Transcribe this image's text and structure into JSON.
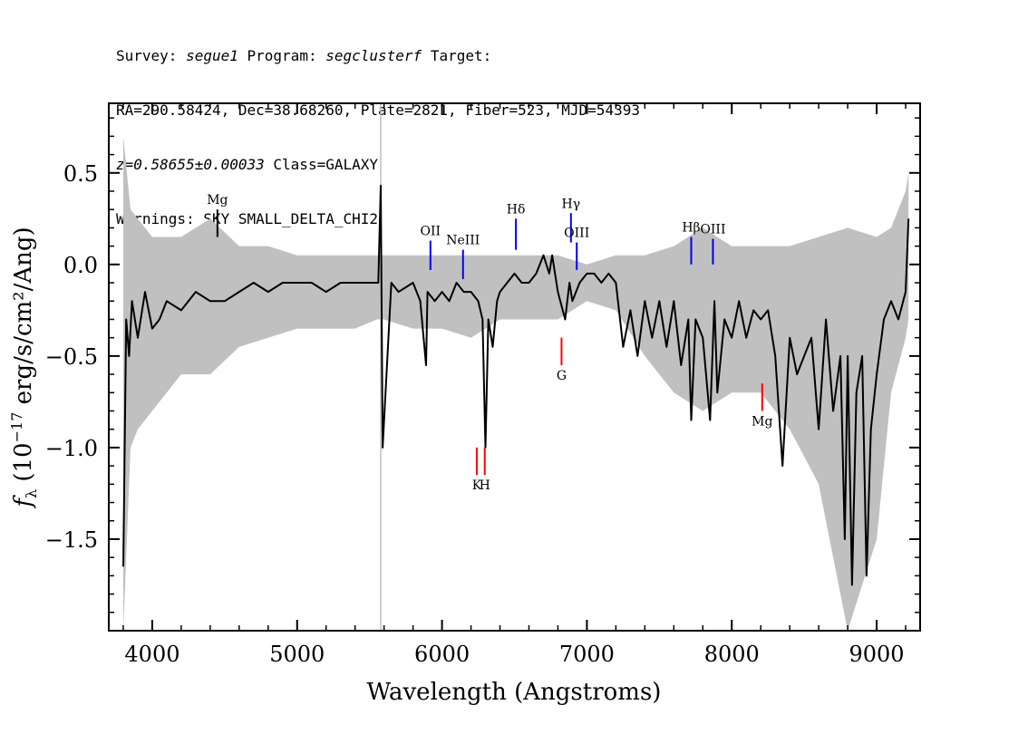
{
  "header": {
    "survey_label": "Survey:",
    "survey": "segue1",
    "program_label": "Program:",
    "program": "segclusterf",
    "target_label": "Target:",
    "coords": "RA=290.58424, Dec=38.68260, Plate=2821, Fiber=523, MJD=54393",
    "redshift": "z=0.58655±0.00033",
    "class": "Class=GALAXY",
    "warnings": "Warnings: SKY SMALL_DELTA_CHI2"
  },
  "chart_data": {
    "type": "line",
    "xlabel": "Wavelength (Angstroms)",
    "ylabel_main": "f",
    "ylabel_sub": "λ",
    "ylabel_rest": " (10",
    "ylabel_exp": "−17",
    "ylabel_tail": " erg/s/cm²/Ang)",
    "xlim": [
      3700,
      9300
    ],
    "ylim": [
      -2.0,
      0.88
    ],
    "x_ticks": [
      4000,
      5000,
      6000,
      7000,
      8000,
      9000
    ],
    "x_tick_labels": [
      "4000",
      "5000",
      "6000",
      "7000",
      "8000",
      "9000"
    ],
    "y_ticks": [
      0.5,
      0.0,
      -0.5,
      -1.0,
      -1.5
    ],
    "y_tick_labels": [
      "0.5",
      "0.0",
      "−0.5",
      "−1.0",
      "−1.5"
    ],
    "colors": {
      "flux": "#000000",
      "error": "#c0c0c0",
      "emission": "#0000ff",
      "absorption": "#ff0000",
      "mg_top": "#000000"
    },
    "series": [
      {
        "role": "flux",
        "x": [
          3800,
          3820,
          3840,
          3860,
          3900,
          3950,
          4000,
          4050,
          4100,
          4200,
          4300,
          4400,
          4500,
          4600,
          4700,
          4800,
          4900,
          5000,
          5100,
          5200,
          5300,
          5400,
          5500,
          5560,
          5577,
          5590,
          5650,
          5700,
          5800,
          5850,
          5890,
          5900,
          5950,
          6000,
          6050,
          6100,
          6150,
          6200,
          6250,
          6280,
          6300,
          6320,
          6350,
          6380,
          6400,
          6450,
          6500,
          6550,
          6600,
          6650,
          6700,
          6740,
          6760,
          6800,
          6850,
          6880,
          6900,
          6950,
          7000,
          7050,
          7100,
          7150,
          7200,
          7250,
          7300,
          7350,
          7400,
          7450,
          7500,
          7550,
          7600,
          7650,
          7700,
          7720,
          7750,
          7800,
          7850,
          7880,
          7900,
          7950,
          8000,
          8050,
          8100,
          8150,
          8200,
          8250,
          8300,
          8350,
          8400,
          8450,
          8500,
          8550,
          8600,
          8650,
          8700,
          8750,
          8780,
          8800,
          8830,
          8860,
          8900,
          8930,
          8960,
          9000,
          9050,
          9100,
          9150,
          9200,
          9220
        ],
        "y": [
          -1.65,
          -0.3,
          -0.5,
          -0.2,
          -0.4,
          -0.15,
          -0.35,
          -0.3,
          -0.2,
          -0.25,
          -0.15,
          -0.2,
          -0.2,
          -0.15,
          -0.1,
          -0.15,
          -0.1,
          -0.1,
          -0.1,
          -0.15,
          -0.1,
          -0.1,
          -0.1,
          -0.1,
          0.43,
          -1.0,
          -0.1,
          -0.15,
          -0.1,
          -0.2,
          -0.55,
          -0.15,
          -0.2,
          -0.15,
          -0.2,
          -0.1,
          -0.15,
          -0.15,
          -0.2,
          -0.3,
          -1.0,
          -0.3,
          -0.45,
          -0.2,
          -0.15,
          -0.1,
          -0.05,
          -0.1,
          -0.1,
          -0.05,
          0.05,
          -0.05,
          0.05,
          -0.15,
          -0.3,
          -0.1,
          -0.2,
          -0.1,
          -0.05,
          -0.05,
          -0.1,
          -0.05,
          -0.1,
          -0.45,
          -0.25,
          -0.5,
          -0.2,
          -0.4,
          -0.2,
          -0.45,
          -0.2,
          -0.55,
          -0.3,
          -0.85,
          -0.3,
          -0.4,
          -0.85,
          -0.2,
          -0.7,
          -0.3,
          -0.4,
          -0.2,
          -0.4,
          -0.25,
          -0.3,
          -0.25,
          -0.5,
          -1.1,
          -0.4,
          -0.6,
          -0.5,
          -0.4,
          -0.9,
          -0.3,
          -0.8,
          -0.5,
          -1.5,
          -0.5,
          -1.75,
          -0.7,
          -0.5,
          -1.7,
          -0.9,
          -0.6,
          -0.3,
          -0.2,
          -0.3,
          -0.15,
          0.25
        ]
      },
      {
        "role": "error_upper",
        "x": [
          3800,
          3850,
          3900,
          4000,
          4200,
          4400,
          4600,
          4800,
          5000,
          5200,
          5400,
          5550,
          5600,
          5800,
          6000,
          6200,
          6400,
          6600,
          6800,
          7000,
          7200,
          7400,
          7600,
          7800,
          8000,
          8200,
          8400,
          8600,
          8800,
          9000,
          9100,
          9200,
          9220
        ],
        "y": [
          0.7,
          0.3,
          0.25,
          0.15,
          0.15,
          0.25,
          0.1,
          0.1,
          0.05,
          0.05,
          0.05,
          0.05,
          0.05,
          0.05,
          0.05,
          0.05,
          0.05,
          0.05,
          0.05,
          0.0,
          0.05,
          0.05,
          0.1,
          0.2,
          0.1,
          0.1,
          0.1,
          0.15,
          0.2,
          0.15,
          0.2,
          0.4,
          0.5
        ]
      },
      {
        "role": "error_lower",
        "x": [
          3800,
          3850,
          3900,
          4000,
          4200,
          4400,
          4600,
          4800,
          5000,
          5200,
          5400,
          5550,
          5600,
          5800,
          6000,
          6200,
          6400,
          6600,
          6800,
          7000,
          7200,
          7400,
          7600,
          7800,
          8000,
          8200,
          8400,
          8600,
          8800,
          9000,
          9100,
          9200,
          9220
        ],
        "y": [
          -2.0,
          -1.0,
          -0.9,
          -0.8,
          -0.6,
          -0.6,
          -0.45,
          -0.4,
          -0.35,
          -0.35,
          -0.35,
          -0.3,
          -0.3,
          -0.35,
          -0.35,
          -0.4,
          -0.3,
          -0.3,
          -0.3,
          -0.2,
          -0.25,
          -0.5,
          -0.7,
          -0.8,
          -0.7,
          -0.7,
          -0.9,
          -1.2,
          -2.0,
          -1.5,
          -0.7,
          -0.4,
          -0.3
        ]
      }
    ],
    "sky_lines": [
      {
        "x": 5577,
        "y_top": 0.88,
        "y_bottom": -2.0
      }
    ],
    "line_markers": [
      {
        "label": "Mg",
        "x": 4450,
        "y_top": 0.3,
        "y_bottom": 0.15,
        "kind": "mg_top"
      },
      {
        "label": "OII",
        "x": 5920,
        "y_top": 0.13,
        "y_bottom": -0.03,
        "kind": "emission"
      },
      {
        "label": "NeIII",
        "x": 6145,
        "y_top": 0.08,
        "y_bottom": -0.08,
        "kind": "emission"
      },
      {
        "label": "Hδ",
        "x": 6510,
        "y_top": 0.25,
        "y_bottom": 0.08,
        "kind": "emission"
      },
      {
        "label": "Hγ",
        "x": 6890,
        "y_top": 0.28,
        "y_bottom": 0.12,
        "kind": "emission"
      },
      {
        "label": "OIII",
        "x": 6930,
        "y_top": 0.12,
        "y_bottom": -0.03,
        "kind": "emission"
      },
      {
        "label": "Hβ",
        "x": 7720,
        "y_top": 0.15,
        "y_bottom": 0.0,
        "kind": "emission"
      },
      {
        "label": "OIII",
        "x": 7870,
        "y_top": 0.14,
        "y_bottom": 0.0,
        "kind": "emission"
      },
      {
        "label": "K",
        "x": 6240,
        "y_top": -1.0,
        "y_bottom": -1.15,
        "kind": "absorption"
      },
      {
        "label": "H",
        "x": 6295,
        "y_top": -1.0,
        "y_bottom": -1.15,
        "kind": "absorption"
      },
      {
        "label": "G",
        "x": 6825,
        "y_top": -0.4,
        "y_bottom": -0.55,
        "kind": "absorption"
      },
      {
        "label": "Mg",
        "x": 8210,
        "y_top": -0.65,
        "y_bottom": -0.8,
        "kind": "absorption"
      }
    ]
  }
}
